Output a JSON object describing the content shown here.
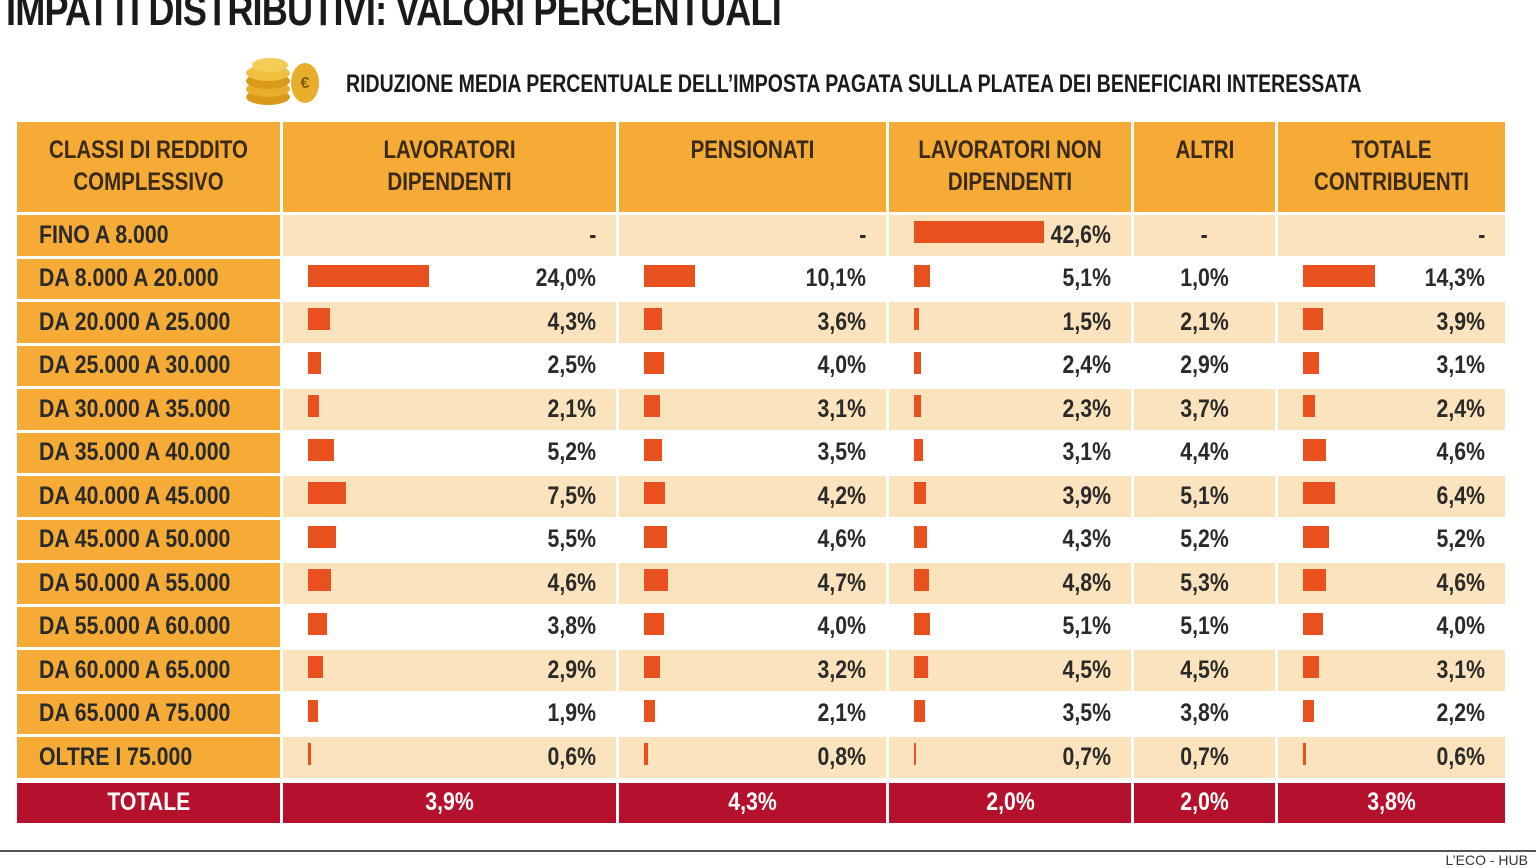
{
  "title": "IMPATTI DISTRIBUTIVI: VALORI PERCENTUALI",
  "subtitle": "RIDUZIONE MEDIA PERCENTUALE DELL’IMPOSTA PAGATA SULLA PLATEA DEI BENEFICIARI INTERESSATA",
  "table": {
    "row_header": "CLASSI DI REDDITO COMPLESSIVO",
    "rows": [
      "FINO A 8.000",
      "DA 8.000 A 20.000",
      "DA 20.000 A 25.000",
      "DA 25.000 A 30.000",
      "DA 30.000 A 35.000",
      "DA 35.000 A 40.000",
      "DA 40.000 A 45.000",
      "DA 45.000 A 50.000",
      "DA 50.000 A 55.000",
      "DA 55.000 A 60.000",
      "DA 60.000 A 65.000",
      "DA 65.000 A 75.000",
      "OLTRE I 75.000"
    ],
    "total_row": "TOTALE",
    "columns": [
      {
        "name": "LAVORATORI DIPENDENTI",
        "bars": true,
        "values": [
          null,
          24.0,
          4.3,
          2.5,
          2.1,
          5.2,
          7.5,
          5.5,
          4.6,
          3.8,
          2.9,
          1.9,
          0.6
        ],
        "value_labels": [
          "-",
          "24,0%",
          "4,3%",
          "2,5%",
          "2,1%",
          "5,2%",
          "7,5%",
          "5,5%",
          "4,6%",
          "3,8%",
          "2,9%",
          "1,9%",
          "0,6%"
        ],
        "total": 3.9,
        "total_label": "3,9%"
      },
      {
        "name": "PENSIONATI",
        "bars": true,
        "values": [
          null,
          10.1,
          3.6,
          4.0,
          3.1,
          3.5,
          4.2,
          4.6,
          4.7,
          4.0,
          3.2,
          2.1,
          0.8
        ],
        "value_labels": [
          "-",
          "10,1%",
          "3,6%",
          "4,0%",
          "3,1%",
          "3,5%",
          "4,2%",
          "4,6%",
          "4,7%",
          "4,0%",
          "3,2%",
          "2,1%",
          "0,8%"
        ],
        "total": 4.3,
        "total_label": "4,3%"
      },
      {
        "name": "LAVORATORI NON DIPENDENTI",
        "bars": true,
        "values": [
          42.6,
          5.1,
          1.5,
          2.4,
          2.3,
          3.1,
          3.9,
          4.3,
          4.8,
          5.1,
          4.5,
          3.5,
          0.7
        ],
        "value_labels": [
          "42,6%",
          "5,1%",
          "1,5%",
          "2,4%",
          "2,3%",
          "3,1%",
          "3,9%",
          "4,3%",
          "4,8%",
          "5,1%",
          "4,5%",
          "3,5%",
          "0,7%"
        ],
        "total": 2.0,
        "total_label": "2,0%"
      },
      {
        "name": "ALTRI",
        "bars": false,
        "values": [
          null,
          1.0,
          2.1,
          2.9,
          3.7,
          4.4,
          5.1,
          5.2,
          5.3,
          5.1,
          4.5,
          3.8,
          0.7
        ],
        "value_labels": [
          "-",
          "1,0%",
          "2,1%",
          "2,9%",
          "3,7%",
          "4,4%",
          "5,1%",
          "5,2%",
          "5,3%",
          "5,1%",
          "4,5%",
          "3,8%",
          "0,7%"
        ],
        "total": 2.0,
        "total_label": "2,0%"
      },
      {
        "name": "TOTALE CONTRIBUENTI",
        "bars": true,
        "values": [
          null,
          14.3,
          3.9,
          3.1,
          2.4,
          4.6,
          6.4,
          5.2,
          4.6,
          4.0,
          3.1,
          2.2,
          0.6
        ],
        "value_labels": [
          "-",
          "14,3%",
          "3,9%",
          "3,1%",
          "2,4%",
          "4,6%",
          "6,4%",
          "5,2%",
          "4,6%",
          "4,0%",
          "3,1%",
          "2,2%",
          "0,6%"
        ],
        "total": 3.8,
        "total_label": "3,8%"
      }
    ]
  },
  "bar_color": "#e8501e",
  "source": "L’ECO - HUB"
}
